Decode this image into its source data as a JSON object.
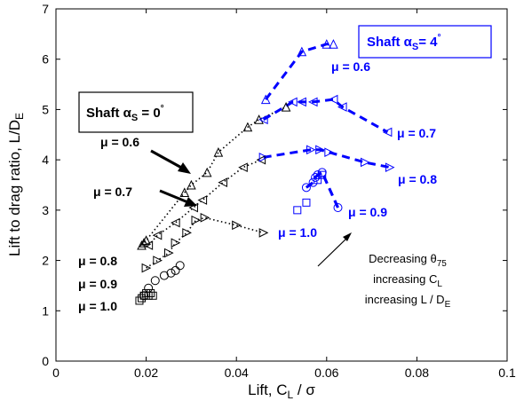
{
  "chart_data": {
    "type": "scatter",
    "xlabel": "Lift, C_L / σ",
    "ylabel": "Lift to drag ratio, L/D_E",
    "xlim": [
      0,
      0.1
    ],
    "ylim": [
      0,
      7
    ],
    "xticks": [
      "0",
      "0.02",
      "0.04",
      "0.06",
      "0.08",
      "0.1"
    ],
    "yticks": [
      "0",
      "1",
      "2",
      "3",
      "4",
      "5",
      "6",
      "7"
    ],
    "grid": false,
    "colors": {
      "shaft0": "#000000",
      "shaft4": "#0000ff"
    },
    "boxes": [
      {
        "text": "Shaft α_S = 0°",
        "color": "#000000"
      },
      {
        "text": "Shaft α_S = 4°",
        "color": "#0000ff"
      }
    ],
    "labels": {
      "black": {
        "mu06": "μ = 0.6",
        "mu07": "μ = 0.7",
        "mu08": "μ = 0.8",
        "mu09": "μ = 0.9",
        "mu10": "μ = 1.0"
      },
      "blue": {
        "mu06": "μ = 0.6",
        "mu07": "μ = 0.7",
        "mu08": "μ = 0.8",
        "mu09": "μ = 0.9",
        "mu10": "μ = 1.0"
      }
    },
    "note": [
      "Decreasing θ_75",
      "increasing C_L",
      "increasing L / D_E"
    ],
    "series": [
      {
        "shaft": "0",
        "mu": "0.6",
        "marker": "triangle-up",
        "x": [
          0.019,
          0.0195,
          0.02,
          0.0285,
          0.03,
          0.0335,
          0.036,
          0.0425,
          0.045,
          0.051
        ],
        "y": [
          2.3,
          2.35,
          2.4,
          3.35,
          3.5,
          3.75,
          4.15,
          4.65,
          4.8,
          5.05
        ]
      },
      {
        "shaft": "0",
        "mu": "0.7",
        "marker": "triangle-left",
        "x": [
          0.0205,
          0.0225,
          0.0265,
          0.0305,
          0.0325,
          0.037,
          0.0415,
          0.0455
        ],
        "y": [
          2.3,
          2.5,
          2.75,
          3.05,
          3.2,
          3.55,
          3.85,
          4.0
        ]
      },
      {
        "shaft": "0",
        "mu": "0.8",
        "marker": "triangle-right",
        "x": [
          0.02,
          0.0225,
          0.025,
          0.0265,
          0.029,
          0.031,
          0.033,
          0.04,
          0.046
        ],
        "y": [
          1.85,
          2.0,
          2.15,
          2.35,
          2.55,
          2.8,
          2.85,
          2.7,
          2.55
        ]
      },
      {
        "shaft": "0",
        "mu": "0.9",
        "marker": "circle",
        "x": [
          0.0195,
          0.0205,
          0.022,
          0.024,
          0.0255,
          0.0265,
          0.0275
        ],
        "y": [
          1.3,
          1.45,
          1.6,
          1.7,
          1.75,
          1.8,
          1.9
        ]
      },
      {
        "shaft": "0",
        "mu": "1.0",
        "marker": "square",
        "x": [
          0.0185,
          0.019,
          0.0195,
          0.02,
          0.0205,
          0.021,
          0.0215
        ],
        "y": [
          1.2,
          1.25,
          1.3,
          1.35,
          1.3,
          1.35,
          1.3
        ]
      },
      {
        "shaft": "4",
        "mu": "0.6",
        "marker": "triangle-up",
        "x": [
          0.0465,
          0.0545,
          0.06,
          0.0615
        ],
        "y": [
          5.2,
          6.15,
          6.3,
          6.3
        ]
      },
      {
        "shaft": "4",
        "mu": "0.7",
        "marker": "triangle-left",
        "x": [
          0.046,
          0.0525,
          0.0545,
          0.057,
          0.0615,
          0.0635,
          0.0735
        ],
        "y": [
          4.8,
          5.15,
          5.15,
          5.15,
          5.2,
          5.05,
          4.55
        ]
      },
      {
        "shaft": "4",
        "mu": "0.8",
        "marker": "triangle-right",
        "x": [
          0.046,
          0.0565,
          0.0585,
          0.0605,
          0.0685,
          0.074
        ],
        "y": [
          4.05,
          4.2,
          4.2,
          4.15,
          3.95,
          3.85
        ]
      },
      {
        "shaft": "4",
        "mu": "0.9",
        "marker": "circle",
        "x": [
          0.0555,
          0.057,
          0.0575,
          0.058,
          0.059,
          0.0625
        ],
        "y": [
          3.45,
          3.55,
          3.65,
          3.7,
          3.75,
          3.05
        ]
      },
      {
        "shaft": "4",
        "mu": "1.0",
        "marker": "square",
        "x": [
          0.0535,
          0.0555,
          0.058,
          0.059
        ],
        "y": [
          3.0,
          3.15,
          3.6,
          3.7
        ]
      }
    ]
  }
}
